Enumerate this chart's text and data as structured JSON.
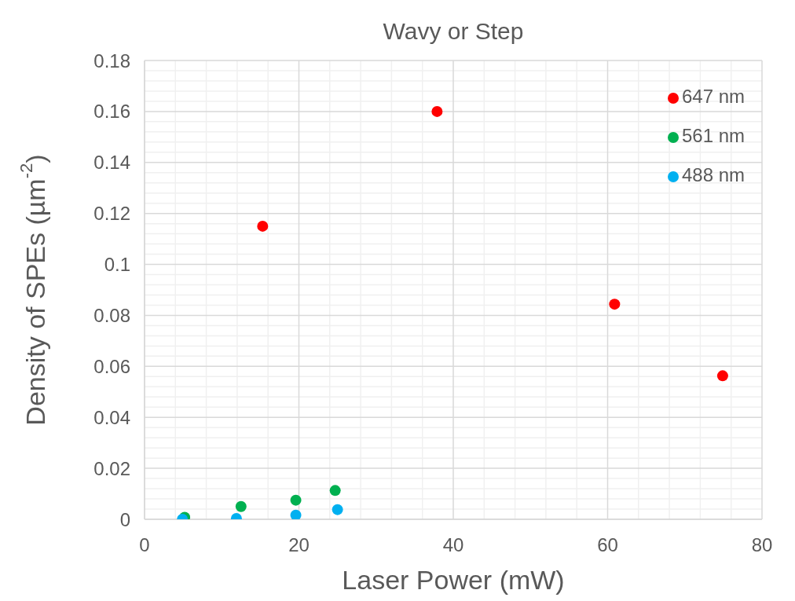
{
  "chart_data": {
    "type": "scatter",
    "title": "Wavy or Step",
    "xlabel": "Laser Power (mW)",
    "ylabel": "Density of SPEs (µm$^{-2}$)",
    "xlim": [
      0,
      80
    ],
    "xticks": [
      0,
      20,
      40,
      60,
      80
    ],
    "ylim": [
      0,
      0.18
    ],
    "yticks": [
      0,
      0.02,
      0.04,
      0.06,
      0.08,
      0.1,
      0.12,
      0.14,
      0.16,
      0.18
    ],
    "grid": true,
    "legend": "top right",
    "marker": "circle",
    "series": [
      {
        "name": "647 nm",
        "color": "#ff0000",
        "x": [
          15.3,
          37.9,
          60.9,
          74.9
        ],
        "values": [
          0.115,
          0.16,
          0.0844,
          0.0563
        ]
      },
      {
        "name": "561 nm",
        "color": "#00b050",
        "x": [
          5.2,
          12.5,
          19.6,
          24.7
        ],
        "values": [
          0.0008,
          0.005,
          0.0075,
          0.0113
        ]
      },
      {
        "name": "488 nm",
        "color": "#00b0f0",
        "x": [
          4.9,
          11.9,
          19.6,
          25.0
        ],
        "values": [
          0,
          0.0003,
          0.0016,
          0.0038
        ]
      }
    ]
  }
}
